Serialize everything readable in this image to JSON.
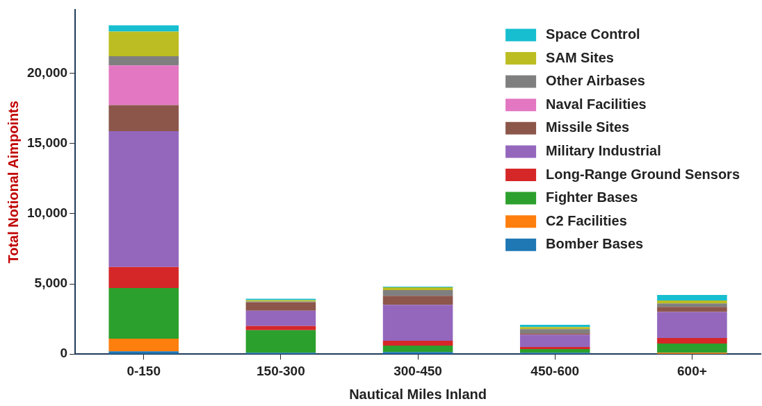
{
  "chart_data": {
    "type": "bar",
    "stacked": true,
    "xlabel": "Nautical Miles Inland",
    "ylabel": "Total Notional Aimpoints",
    "categories": [
      "0-150",
      "150-300",
      "300-450",
      "450-600",
      "600+"
    ],
    "ylim": [
      0,
      24500
    ],
    "yticks": [
      0,
      {
        "value": 5000,
        "label": "5,000"
      },
      {
        "value": 10000,
        "label": "10,000"
      },
      {
        "value": 15000,
        "label": "15,000"
      },
      {
        "value": 20000,
        "label": "20,000"
      }
    ],
    "grid": false,
    "legend": "top right",
    "series": [
      {
        "name": "Bomber Bases",
        "color": "#1f77b4",
        "values": [
          200,
          100,
          150,
          100,
          0
        ]
      },
      {
        "name": "C2 Facilities",
        "color": "#ff7f0e",
        "values": [
          900,
          0,
          0,
          0,
          100
        ]
      },
      {
        "name": "Fighter Bases",
        "color": "#2ca02c",
        "values": [
          3600,
          1600,
          450,
          250,
          650
        ]
      },
      {
        "name": "Long-Range Ground Sensors",
        "color": "#d62728",
        "values": [
          1500,
          300,
          350,
          150,
          400
        ]
      },
      {
        "name": "Military Industrial",
        "color": "#9467bd",
        "values": [
          9670,
          1090,
          2550,
          880,
          1850
        ]
      },
      {
        "name": "Missile Sites",
        "color": "#8c564b",
        "values": [
          1850,
          600,
          650,
          100,
          360
        ]
      },
      {
        "name": "Naval Facilities",
        "color": "#e377c2",
        "values": [
          2840,
          0,
          0,
          0,
          0
        ]
      },
      {
        "name": "Other Airbases",
        "color": "#7f7f7f",
        "values": [
          650,
          50,
          400,
          300,
          250
        ]
      },
      {
        "name": "SAM Sites",
        "color": "#bcbd22",
        "values": [
          1750,
          100,
          200,
          150,
          200
        ]
      },
      {
        "name": "Space Control",
        "color": "#17becf",
        "values": [
          450,
          100,
          50,
          150,
          400
        ]
      }
    ]
  }
}
